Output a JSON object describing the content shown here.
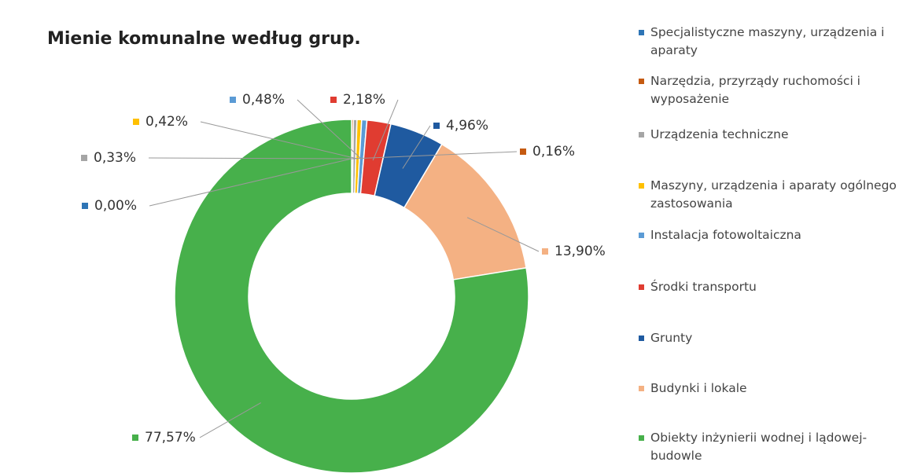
{
  "chart_data": {
    "type": "donut",
    "title": "Mienie komunalne według grup.",
    "categories": [
      "Specjalistyczne maszyny, urządzenia i aparaty",
      "Narzędzia, przyrządy ruchomości i wyposażenie",
      "Urządzenia techniczne",
      "Maszyny, urządzenia i aparaty ogólnego zastosowania",
      "Instalacja fotowoltaiczna",
      "Środki transportu",
      "Grunty",
      "Budynki i lokale",
      "Obiekty inżynierii wodnej i lądowej-budowle"
    ],
    "values": [
      0.0,
      0.16,
      0.33,
      0.42,
      0.48,
      2.18,
      4.96,
      13.9,
      77.57
    ],
    "value_labels": [
      "0,00%",
      "0,16%",
      "0,33%",
      "0,42%",
      "0,48%",
      "2,18%",
      "4,96%",
      "13,90%",
      "77,57%"
    ],
    "colors": [
      "#2e75b6",
      "#c55a11",
      "#a5a5a5",
      "#ffc000",
      "#5b9bd5",
      "#e03c31",
      "#1f5aa0",
      "#f4b183",
      "#47b04b"
    ],
    "legend": "right"
  }
}
